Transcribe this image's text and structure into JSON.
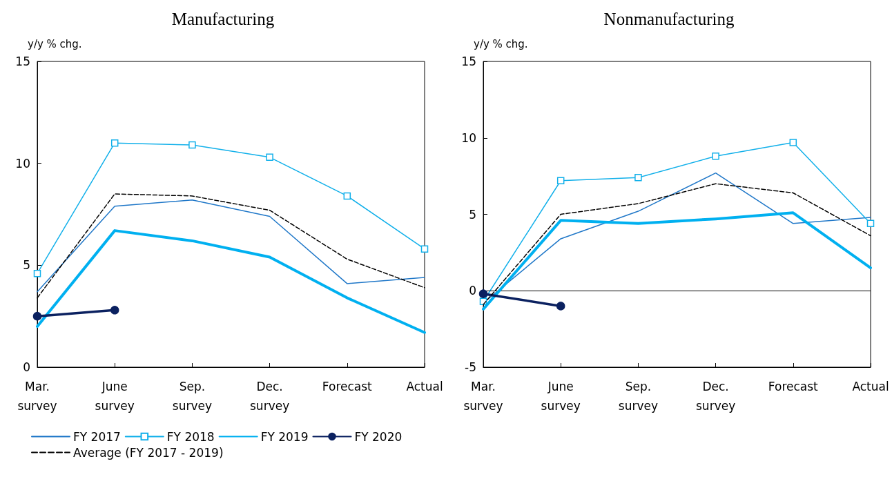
{
  "chart_data": [
    {
      "type": "line",
      "title": "Manufacturing",
      "ylabel": "y/y % chg.",
      "categories": [
        "Mar.\nsurvey",
        "June\nsurvey",
        "Sep.\nsurvey",
        "Dec.\nsurvey",
        "Forecast",
        "Actual"
      ],
      "ylim": [
        0,
        15
      ],
      "yticks": [
        0,
        5,
        10,
        15
      ],
      "grid": false,
      "legend": "bottom",
      "series": [
        {
          "name": "FY 2017",
          "color": "#1f77c8",
          "marker": "none",
          "line_style": "solid",
          "values": [
            3.7,
            7.9,
            8.2,
            7.4,
            4.1,
            4.4
          ]
        },
        {
          "name": "FY 2018",
          "color": "#12b0ea",
          "marker": "square",
          "line_style": "solid",
          "values": [
            4.6,
            11.0,
            10.9,
            10.3,
            8.4,
            5.8
          ]
        },
        {
          "name": "FY 2019",
          "color": "#00b0f0",
          "marker": "none",
          "line_style": "solid",
          "values": [
            2.0,
            6.7,
            6.2,
            5.4,
            3.4,
            1.7
          ]
        },
        {
          "name": "FY 2020",
          "color": "#0b2160",
          "marker": "circle",
          "line_style": "solid",
          "values": [
            2.5,
            2.8,
            null,
            null,
            null,
            null
          ]
        },
        {
          "name": "Average (FY 2017 - 2019)",
          "color": "#000000",
          "marker": "none",
          "line_style": "dashed",
          "values": [
            3.4,
            8.5,
            8.4,
            7.7,
            5.3,
            3.9
          ]
        }
      ]
    },
    {
      "type": "line",
      "title": "Nonmanufacturing",
      "ylabel": "y/y % chg.",
      "categories": [
        "Mar.\nsurvey",
        "June\nsurvey",
        "Sep.\nsurvey",
        "Dec.\nsurvey",
        "Forecast",
        "Actual"
      ],
      "ylim": [
        -5,
        15
      ],
      "yticks": [
        -5,
        0,
        5,
        10,
        15
      ],
      "grid": false,
      "legend": false,
      "ref_lines": [
        {
          "axis": "y",
          "value": 0,
          "color": "#000000"
        }
      ],
      "series": [
        {
          "color": "#1f77c8",
          "marker": "none",
          "line_style": "solid",
          "values": [
            -0.8,
            3.4,
            5.2,
            7.7,
            4.4,
            4.8
          ]
        },
        {
          "color": "#12b0ea",
          "marker": "square",
          "line_style": "solid",
          "values": [
            -0.7,
            7.2,
            7.4,
            8.8,
            9.7,
            4.4
          ]
        },
        {
          "color": "#00b0f0",
          "marker": "none",
          "line_style": "solid",
          "values": [
            -1.2,
            4.6,
            4.4,
            4.7,
            5.1,
            1.5
          ]
        },
        {
          "color": "#0b2160",
          "marker": "circle",
          "line_style": "solid",
          "values": [
            -0.2,
            -1.0,
            null,
            null,
            null,
            null
          ]
        },
        {
          "color": "#000000",
          "marker": "none",
          "line_style": "dashed",
          "values": [
            -0.9,
            5.0,
            5.7,
            7.0,
            6.4,
            3.6
          ]
        }
      ]
    }
  ]
}
